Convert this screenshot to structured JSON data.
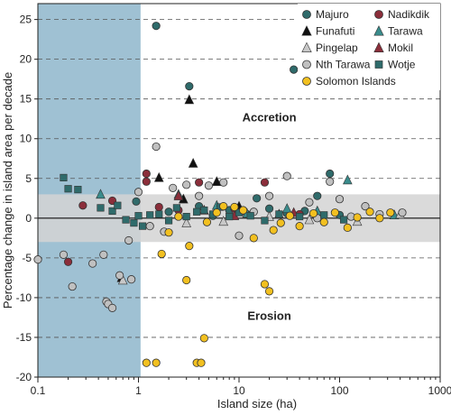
{
  "chart_data": {
    "type": "scatter",
    "xlabel": "Island size (ha)",
    "ylabel": "Percentage change in island area per decade",
    "x_scale": "log",
    "xlim": [
      0.1,
      1000
    ],
    "ylim": [
      -20,
      27
    ],
    "x_ticks": [
      "0.1",
      "1",
      "10",
      "100",
      "1000"
    ],
    "y_ticks": [
      -20,
      -15,
      -10,
      -5,
      0,
      5,
      10,
      15,
      20,
      25
    ],
    "grid": "dashed horizontal at y ticks",
    "shaded_x_range": [
      0.1,
      1.05
    ],
    "stable_band": [
      -3,
      3
    ],
    "annotations": [
      "Accretion",
      "Erosion"
    ],
    "legend_position": "top-right",
    "series": [
      {
        "name": "Majuro",
        "marker": "circle",
        "color": "#2f6b6b",
        "points": [
          [
            1.5,
            24.2
          ],
          [
            3.2,
            16.6
          ],
          [
            35,
            18.7
          ],
          [
            0.95,
            2.1
          ],
          [
            2.0,
            0.8
          ],
          [
            4.0,
            1.5
          ],
          [
            5.5,
            0.3
          ],
          [
            8.0,
            1.0
          ],
          [
            12,
            0.5
          ],
          [
            15,
            2.5
          ],
          [
            20,
            1.2
          ],
          [
            30,
            0.6
          ],
          [
            45,
            0.9
          ],
          [
            60,
            2.8
          ],
          [
            80,
            5.6
          ],
          [
            100,
            0.4
          ]
        ]
      },
      {
        "name": "Nadikdik",
        "marker": "circle",
        "color": "#8b2e3a",
        "points": [
          [
            0.2,
            -5.5
          ],
          [
            0.28,
            1.6
          ],
          [
            0.55,
            2.2
          ],
          [
            1.2,
            5.6
          ],
          [
            1.2,
            4.6
          ],
          [
            1.6,
            1.4
          ],
          [
            2.5,
            1.0
          ],
          [
            4.0,
            4.5
          ],
          [
            9.0,
            1.2
          ],
          [
            18,
            4.5
          ],
          [
            40,
            0.5
          ]
        ]
      },
      {
        "name": "Funafuti",
        "marker": "triangle",
        "color": "#111111",
        "points": [
          [
            0.68,
            -7.5
          ],
          [
            1.6,
            5.1
          ],
          [
            3.2,
            14.9
          ],
          [
            3.5,
            6.9
          ],
          [
            2.8,
            2.4
          ],
          [
            6.0,
            4.6
          ],
          [
            10,
            1.5
          ],
          [
            25,
            0.5
          ]
        ]
      },
      {
        "name": "Tarawa",
        "marker": "triangle",
        "color": "#3a8c8c",
        "points": [
          [
            0.42,
            3.0
          ],
          [
            2.5,
            3.0
          ],
          [
            6.0,
            1.6
          ],
          [
            12,
            0.6
          ],
          [
            30,
            1.2
          ],
          [
            60,
            0.9
          ],
          [
            120,
            4.8
          ],
          [
            350,
            0.4
          ]
        ]
      },
      {
        "name": "Pingelap",
        "marker": "triangle",
        "color": "#c8c8c8",
        "points": [
          [
            0.7,
            -7.8
          ],
          [
            3.0,
            -0.6
          ],
          [
            7.0,
            -0.4
          ],
          [
            20,
            0.2
          ],
          [
            50,
            -0.2
          ],
          [
            150,
            -0.4
          ],
          [
            400,
            0.5
          ]
        ]
      },
      {
        "name": "Mokil",
        "marker": "triangle",
        "color": "#8b2e3a",
        "points": [
          [
            2.5,
            2.8
          ],
          [
            4.5,
            1.0
          ],
          [
            9.0,
            0.3
          ],
          [
            35,
            0.7
          ]
        ]
      },
      {
        "name": "Nth Tarawa",
        "marker": "circle",
        "color": "#c0c0c0",
        "points": [
          [
            0.1,
            -5.2
          ],
          [
            0.18,
            -4.6
          ],
          [
            0.22,
            -8.6
          ],
          [
            0.35,
            -5.7
          ],
          [
            0.45,
            -4.6
          ],
          [
            0.48,
            -10.5
          ],
          [
            0.5,
            -10.8
          ],
          [
            0.55,
            -11.3
          ],
          [
            0.65,
            -7.2
          ],
          [
            0.85,
            -7.7
          ],
          [
            0.8,
            -2.8
          ],
          [
            1.0,
            3.3
          ],
          [
            1.3,
            -1.0
          ],
          [
            1.5,
            9.0
          ],
          [
            1.8,
            -1.7
          ],
          [
            2.2,
            3.8
          ],
          [
            3.0,
            4.2
          ],
          [
            4.0,
            2.8
          ],
          [
            5.0,
            4.1
          ],
          [
            7.0,
            4.5
          ],
          [
            10,
            -2.2
          ],
          [
            14,
            0.8
          ],
          [
            20,
            2.8
          ],
          [
            30,
            5.3
          ],
          [
            50,
            2.0
          ],
          [
            60,
            0.0
          ],
          [
            80,
            4.6
          ],
          [
            100,
            2.4
          ],
          [
            130,
            0.2
          ],
          [
            180,
            1.5
          ],
          [
            250,
            0.5
          ],
          [
            420,
            0.7
          ]
        ]
      },
      {
        "name": "Wotje",
        "marker": "square",
        "color": "#2f6b6b",
        "points": [
          [
            0.18,
            5.1
          ],
          [
            0.2,
            3.7
          ],
          [
            0.25,
            3.6
          ],
          [
            0.42,
            1.3
          ],
          [
            0.55,
            0.9
          ],
          [
            0.62,
            1.6
          ],
          [
            0.75,
            -0.2
          ],
          [
            0.9,
            -0.6
          ],
          [
            1.0,
            0.3
          ],
          [
            1.1,
            -1.0
          ],
          [
            1.3,
            0.4
          ],
          [
            1.6,
            0.5
          ],
          [
            2.0,
            -0.3
          ],
          [
            2.4,
            1.3
          ],
          [
            3.0,
            0.2
          ],
          [
            3.8,
            0.8
          ],
          [
            4.5,
            1.0
          ],
          [
            5.5,
            0.5
          ],
          [
            6.5,
            1.4
          ],
          [
            8.0,
            0.2
          ],
          [
            10,
            0.7
          ],
          [
            13,
            0.3
          ],
          [
            18,
            -0.3
          ],
          [
            25,
            0.5
          ],
          [
            40,
            0.2
          ],
          [
            70,
            0.4
          ],
          [
            110,
            -0.2
          ]
        ]
      },
      {
        "name": "Solomon Islands",
        "marker": "circle",
        "color": "#f2c020",
        "points": [
          [
            1.2,
            -18.2
          ],
          [
            1.5,
            -18.2
          ],
          [
            3.0,
            -7.8
          ],
          [
            3.8,
            -18.2
          ],
          [
            4.2,
            -18.2
          ],
          [
            4.5,
            -15.1
          ],
          [
            1.7,
            -4.5
          ],
          [
            2.0,
            -1.8
          ],
          [
            2.5,
            0.2
          ],
          [
            3.2,
            -3.5
          ],
          [
            4.8,
            -0.5
          ],
          [
            6.0,
            0.7
          ],
          [
            7.0,
            1.5
          ],
          [
            9.0,
            1.4
          ],
          [
            11,
            1.0
          ],
          [
            14,
            -2.5
          ],
          [
            18,
            -8.3
          ],
          [
            20,
            -9.2
          ],
          [
            22,
            -1.5
          ],
          [
            26,
            -0.6
          ],
          [
            32,
            0.3
          ],
          [
            40,
            -1.0
          ],
          [
            55,
            0.6
          ],
          [
            70,
            -0.5
          ],
          [
            90,
            0.7
          ],
          [
            120,
            -1.2
          ],
          [
            150,
            0.1
          ],
          [
            200,
            0.8
          ],
          [
            250,
            0.0
          ],
          [
            320,
            0.7
          ]
        ]
      }
    ]
  }
}
